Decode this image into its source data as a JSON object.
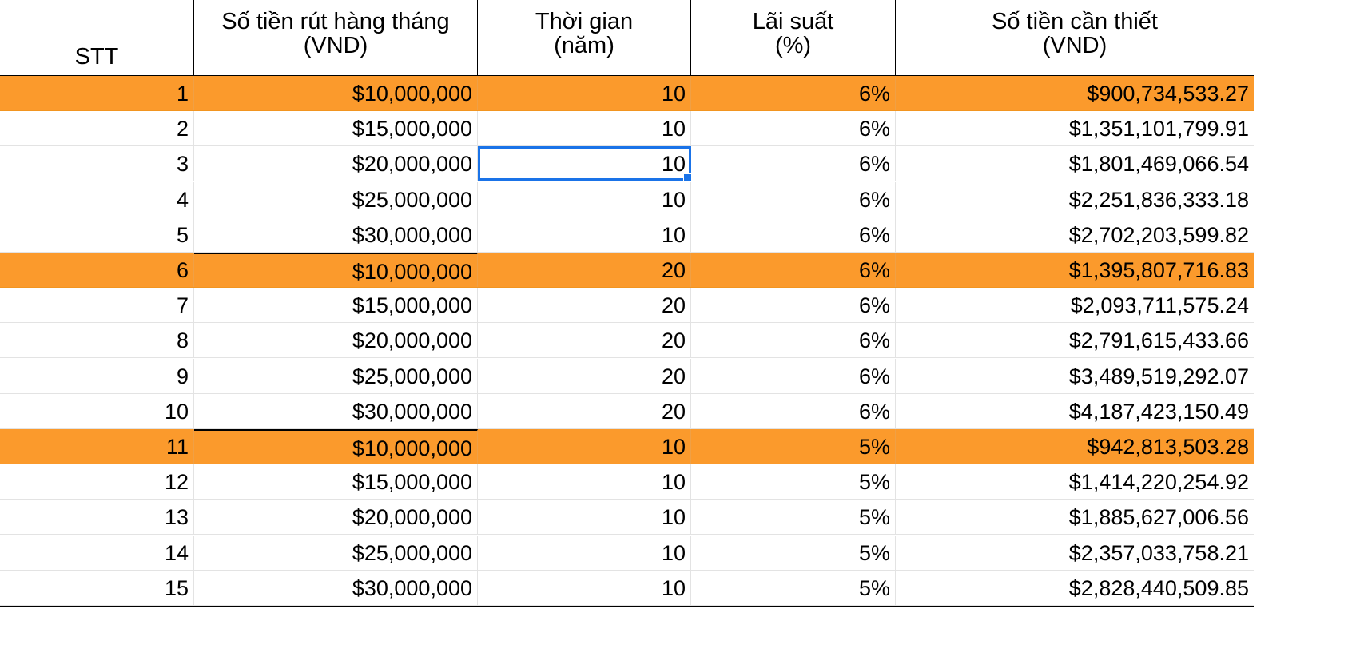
{
  "headers": {
    "stt": "STT",
    "withdrawal": [
      "Số tiền rút hàng tháng",
      "(VND)"
    ],
    "duration": [
      "Thời gian",
      "(năm)"
    ],
    "rate": [
      "Lãi suất",
      "(%)"
    ],
    "required": [
      "Số tiền cần thiết",
      "(VND)"
    ]
  },
  "rows": [
    {
      "stt": "1",
      "withdrawal": "$10,000,000",
      "duration": "10",
      "rate": "6%",
      "required": "$900,734,533.27",
      "highlight": true
    },
    {
      "stt": "2",
      "withdrawal": "$15,000,000",
      "duration": "10",
      "rate": "6%",
      "required": "$1,351,101,799.91",
      "highlight": false
    },
    {
      "stt": "3",
      "withdrawal": "$20,000,000",
      "duration": "10",
      "rate": "6%",
      "required": "$1,801,469,066.54",
      "highlight": false,
      "selected": true
    },
    {
      "stt": "4",
      "withdrawal": "$25,000,000",
      "duration": "10",
      "rate": "6%",
      "required": "$2,251,836,333.18",
      "highlight": false
    },
    {
      "stt": "5",
      "withdrawal": "$30,000,000",
      "duration": "10",
      "rate": "6%",
      "required": "$2,702,203,599.82",
      "highlight": false
    },
    {
      "stt": "6",
      "withdrawal": "$10,000,000",
      "duration": "20",
      "rate": "6%",
      "required": "$1,395,807,716.83",
      "highlight": true
    },
    {
      "stt": "7",
      "withdrawal": "$15,000,000",
      "duration": "20",
      "rate": "6%",
      "required": "$2,093,711,575.24",
      "highlight": false
    },
    {
      "stt": "8",
      "withdrawal": "$20,000,000",
      "duration": "20",
      "rate": "6%",
      "required": "$2,791,615,433.66",
      "highlight": false
    },
    {
      "stt": "9",
      "withdrawal": "$25,000,000",
      "duration": "20",
      "rate": "6%",
      "required": "$3,489,519,292.07",
      "highlight": false
    },
    {
      "stt": "10",
      "withdrawal": "$30,000,000",
      "duration": "20",
      "rate": "6%",
      "required": "$4,187,423,150.49",
      "highlight": false
    },
    {
      "stt": "11",
      "withdrawal": "$10,000,000",
      "duration": "10",
      "rate": "5%",
      "required": "$942,813,503.28",
      "highlight": true
    },
    {
      "stt": "12",
      "withdrawal": "$15,000,000",
      "duration": "10",
      "rate": "5%",
      "required": "$1,414,220,254.92",
      "highlight": false
    },
    {
      "stt": "13",
      "withdrawal": "$20,000,000",
      "duration": "10",
      "rate": "5%",
      "required": "$1,885,627,006.56",
      "highlight": false
    },
    {
      "stt": "14",
      "withdrawal": "$25,000,000",
      "duration": "10",
      "rate": "5%",
      "required": "$2,357,033,758.21",
      "highlight": false
    },
    {
      "stt": "15",
      "withdrawal": "$30,000,000",
      "duration": "10",
      "rate": "5%",
      "required": "$2,828,440,509.85",
      "highlight": false
    }
  ],
  "colors": {
    "highlight": "#fb9a2c",
    "selection": "#1a73e8",
    "gridline": "#e3e3e3"
  }
}
